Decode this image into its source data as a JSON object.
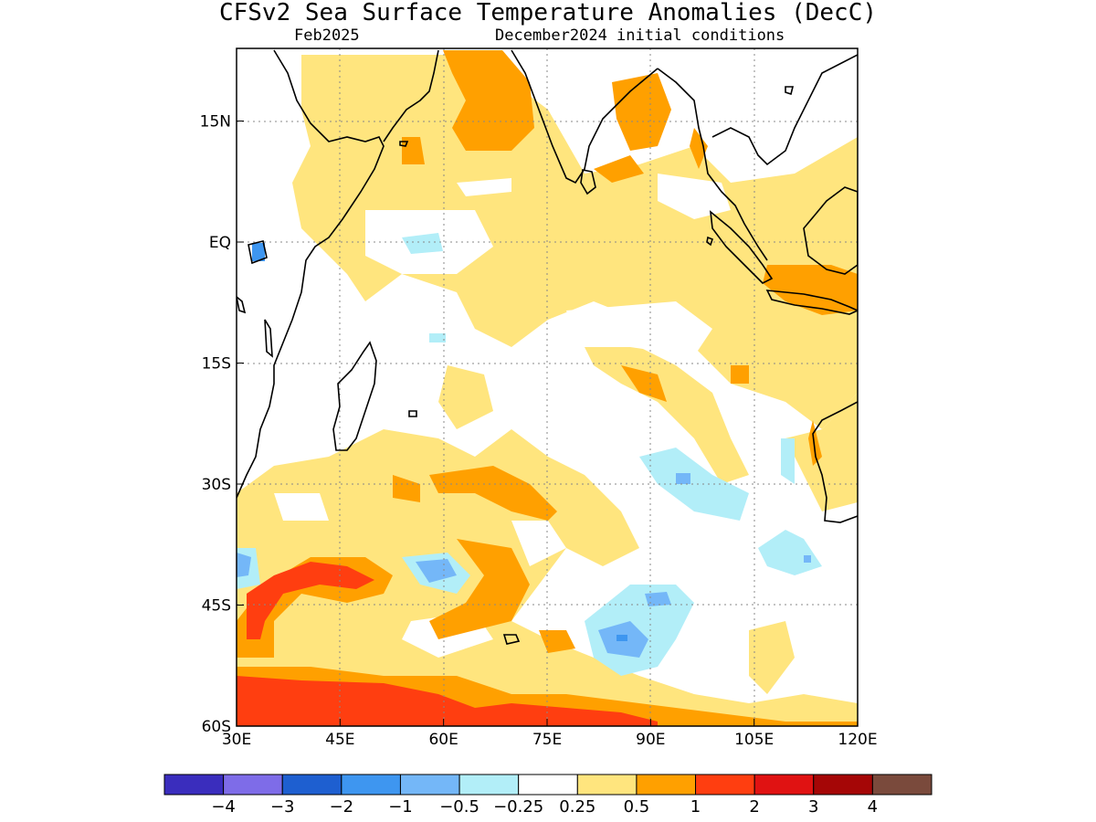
{
  "header": {
    "title": "CFSv2 Sea Surface Temperature Anomalies (DecC)",
    "valid_month": "Feb2025",
    "init": "December2024 initial conditions"
  },
  "map": {
    "lon_range": [
      30,
      120
    ],
    "lat_range": [
      -60,
      24
    ],
    "x_ticks": [
      {
        "lon": 30,
        "label": "30E"
      },
      {
        "lon": 45,
        "label": "45E"
      },
      {
        "lon": 60,
        "label": "60E"
      },
      {
        "lon": 75,
        "label": "75E"
      },
      {
        "lon": 90,
        "label": "90E"
      },
      {
        "lon": 105,
        "label": "105E"
      },
      {
        "lon": 120,
        "label": "120E"
      }
    ],
    "y_ticks": [
      {
        "lat": 15,
        "label": "15N"
      },
      {
        "lat": 0,
        "label": "EQ"
      },
      {
        "lat": -15,
        "label": "15S"
      },
      {
        "lat": -30,
        "label": "30S"
      },
      {
        "lat": -45,
        "label": "45S"
      },
      {
        "lat": -60,
        "label": "60S"
      }
    ],
    "grid": true
  },
  "colorbar": {
    "colors": [
      "#3a2dbd",
      "#7e6ce8",
      "#1e5fd0",
      "#3e96f0",
      "#74b7f8",
      "#b2eef8",
      "#ffffff",
      "#ffe57e",
      "#ffa000",
      "#ff3e10",
      "#e01212",
      "#a50606",
      "#7a4a3c"
    ],
    "labels": [
      "−4",
      "−3",
      "−2",
      "−1",
      "−0.5",
      "−0.25",
      "0.25",
      "0.5",
      "1",
      "2",
      "3",
      "4"
    ]
  }
}
